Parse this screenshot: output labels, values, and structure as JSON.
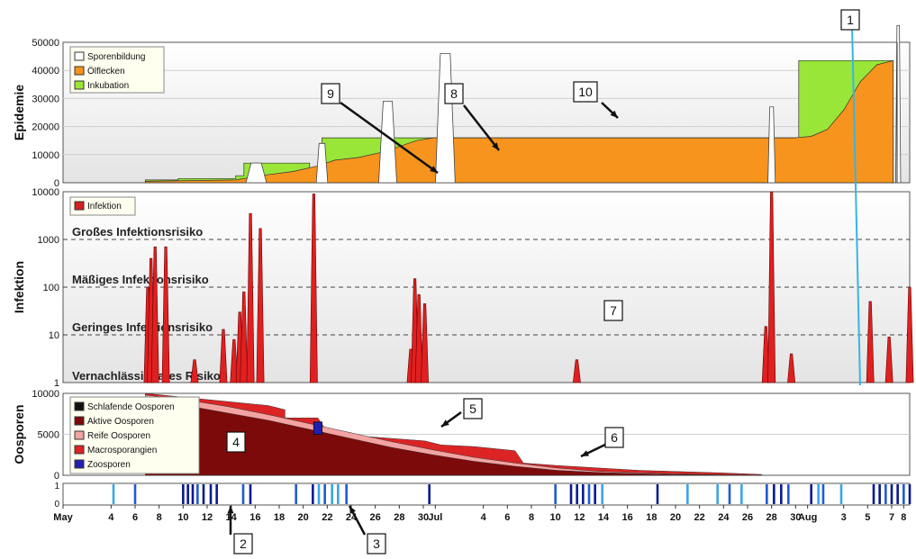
{
  "chart_data": [
    {
      "type": "area",
      "ylabel": "Epidemie",
      "ylim": [
        0,
        50000
      ],
      "yticks": [
        "0",
        "10000",
        "20000",
        "30000",
        "40000",
        "50000"
      ],
      "legend": {
        "placement": "top-left",
        "entries": [
          {
            "name": "Sporenbildung",
            "color": "#ffffff"
          },
          {
            "name": "Ölflecken",
            "color": "#f7941d"
          },
          {
            "name": "Inkubation",
            "color": "#99e639"
          }
        ]
      },
      "series": [
        {
          "name": "Inkubation",
          "color": "#99e639",
          "points": [
            [
              10,
              0
            ],
            [
              10,
              1000
            ],
            [
              14,
              1000
            ],
            [
              14,
              1500
            ],
            [
              21,
              1500
            ],
            [
              21,
              2500
            ],
            [
              22,
              2500
            ],
            [
              22,
              7000
            ],
            [
              30,
              7000
            ],
            [
              30,
              3000
            ],
            [
              31.5,
              3000
            ],
            [
              31.5,
              16000
            ],
            [
              38.5,
              16000
            ],
            [
              38.5,
              16000
            ],
            [
              89.5,
              16000
            ],
            [
              89.5,
              43500
            ],
            [
              101,
              43500
            ],
            [
              101,
              0
            ]
          ]
        },
        {
          "name": "Ölflecken",
          "color": "#f7941d",
          "points": [
            [
              10,
              0
            ],
            [
              10,
              500
            ],
            [
              21,
              1000
            ],
            [
              24,
              2500
            ],
            [
              28,
              4000
            ],
            [
              31,
              6000
            ],
            [
              33,
              8000
            ],
            [
              36,
              9000
            ],
            [
              39,
              11000
            ],
            [
              41,
              13000
            ],
            [
              43,
              15000
            ],
            [
              45,
              16000
            ],
            [
              89,
              16000
            ],
            [
              91,
              16500
            ],
            [
              93,
              19000
            ],
            [
              95,
              26000
            ],
            [
              97,
              36000
            ],
            [
              99,
              42000
            ],
            [
              101,
              43500
            ],
            [
              101,
              0
            ]
          ]
        },
        {
          "name": "Sporenbildung",
          "color": "#ffffff",
          "peaks": [
            {
              "x": 23.5,
              "width": 2.5,
              "value": 7000
            },
            {
              "x": 31.5,
              "width": 1.4,
              "value": 14000
            },
            {
              "x": 39.5,
              "width": 2.2,
              "value": 29000
            },
            {
              "x": 46.5,
              "width": 2.4,
              "value": 46000
            },
            {
              "x": 86.2,
              "width": 0.9,
              "value": 27000
            },
            {
              "x": 101.6,
              "width": 0.6,
              "value": 56000
            }
          ]
        }
      ]
    },
    {
      "type": "bar",
      "ylabel": "Infektion",
      "yscale": "log",
      "ylim": [
        1,
        10000
      ],
      "yticks": [
        "1",
        "10",
        "100",
        "1000",
        "10000"
      ],
      "legend": {
        "placement": "top-left",
        "entries": [
          {
            "name": "Infektion",
            "color": "#d42020"
          }
        ]
      },
      "thresholds": [
        {
          "label": "Großes Infektionsrisiko",
          "value": 1000
        },
        {
          "label": "Mäßiges Infektionsrisiko",
          "value": 100
        },
        {
          "label": "Geringes Infektionsrisiko",
          "value": 10
        },
        {
          "label": "Vernachlässigbares Risiko",
          "value": 1
        }
      ],
      "peaks": [
        {
          "x": 10.3,
          "value": 100
        },
        {
          "x": 10.7,
          "value": 400
        },
        {
          "x": 11.2,
          "value": 700
        },
        {
          "x": 12.5,
          "value": 700
        },
        {
          "x": 16.0,
          "value": 3
        },
        {
          "x": 19.5,
          "value": 13
        },
        {
          "x": 20.8,
          "value": 8
        },
        {
          "x": 21.5,
          "value": 30
        },
        {
          "x": 22.0,
          "value": 80
        },
        {
          "x": 22.8,
          "value": 3500
        },
        {
          "x": 24.0,
          "value": 1700
        },
        {
          "x": 30.5,
          "value": 9000
        },
        {
          "x": 42.3,
          "value": 5
        },
        {
          "x": 42.8,
          "value": 150
        },
        {
          "x": 43.3,
          "value": 70
        },
        {
          "x": 44.0,
          "value": 45
        },
        {
          "x": 62.5,
          "value": 3
        },
        {
          "x": 85.5,
          "value": 15
        },
        {
          "x": 86.2,
          "value": 10000
        },
        {
          "x": 88.6,
          "value": 4
        },
        {
          "x": 98.2,
          "value": 50
        },
        {
          "x": 100.5,
          "value": 9
        },
        {
          "x": 103.0,
          "value": 100
        }
      ]
    },
    {
      "type": "area",
      "ylabel": "Oosporen",
      "ylim": [
        0,
        10000
      ],
      "yticks": [
        "0",
        "5000",
        "10000"
      ],
      "legend": {
        "placement": "top-left",
        "entries": [
          {
            "name": "Schlafende Oosporen",
            "color": "#111111"
          },
          {
            "name": "Aktive Oosporen",
            "color": "#7d0a0a"
          },
          {
            "name": "Reife Oosporen",
            "color": "#f4a3a3"
          },
          {
            "name": "Macrosporangien",
            "color": "#dc2424"
          },
          {
            "name": "Zoosporen",
            "color": "#2020b0"
          }
        ]
      },
      "series": [
        {
          "name": "Aktive Oosporen",
          "points": [
            [
              10,
              9000
            ],
            [
              15,
              8500
            ],
            [
              20,
              7600
            ],
            [
              25,
              6700
            ],
            [
              30,
              5600
            ],
            [
              35,
              4500
            ],
            [
              40,
              3400
            ],
            [
              45,
              2500
            ],
            [
              50,
              1700
            ],
            [
              55,
              1100
            ],
            [
              60,
              600
            ],
            [
              65,
              350
            ],
            [
              70,
              200
            ],
            [
              75,
              90
            ],
            [
              80,
              40
            ],
            [
              85,
              15
            ]
          ]
        },
        {
          "name": "Reife Oosporen",
          "points": [
            [
              10,
              9800
            ],
            [
              15,
              9200
            ],
            [
              20,
              8400
            ],
            [
              25,
              7400
            ],
            [
              30,
              6300
            ],
            [
              35,
              5200
            ],
            [
              40,
              4100
            ],
            [
              45,
              3100
            ],
            [
              50,
              2200
            ],
            [
              55,
              1500
            ],
            [
              60,
              900
            ],
            [
              65,
              500
            ],
            [
              70,
              300
            ],
            [
              75,
              150
            ],
            [
              80,
              60
            ],
            [
              85,
              20
            ]
          ]
        },
        {
          "name": "Macrosporangien",
          "points": [
            [
              10,
              10000
            ],
            [
              15,
              9500
            ],
            [
              20,
              9000
            ],
            [
              25,
              8500
            ],
            [
              27,
              8000
            ],
            [
              27,
              7000
            ],
            [
              31,
              7000
            ],
            [
              32,
              5500
            ],
            [
              35,
              5200
            ],
            [
              36,
              4800
            ],
            [
              40,
              4500
            ],
            [
              44,
              4200
            ],
            [
              46,
              3700
            ],
            [
              50,
              3500
            ],
            [
              55,
              3000
            ],
            [
              56,
              1500
            ],
            [
              60,
              1200
            ],
            [
              70,
              600
            ],
            [
              80,
              300
            ],
            [
              85,
              100
            ]
          ]
        },
        {
          "name": "Zoosporen",
          "patches": [
            {
              "x0": 30.5,
              "x1": 31.5,
              "value": 6500
            }
          ]
        }
      ]
    },
    {
      "type": "heatmap",
      "ylim": [
        0,
        1
      ],
      "yticks": [
        "0",
        "1"
      ],
      "x_tick_labels": [
        "May",
        "4",
        "6",
        "8",
        "10",
        "12",
        "14",
        "16",
        "18",
        "20",
        "22",
        "24",
        "26",
        "28",
        "30",
        "Jul",
        "4",
        "6",
        "8",
        "10",
        "12",
        "14",
        "16",
        "18",
        "20",
        "22",
        "24",
        "26",
        "28",
        "30",
        "Aug",
        "3",
        "5",
        "7",
        "8"
      ],
      "x_tick_values": [
        0,
        4,
        6,
        8,
        10,
        12,
        14,
        16,
        18,
        20,
        22,
        24,
        26,
        28,
        30,
        31,
        35,
        37,
        39,
        41,
        43,
        45,
        47,
        49,
        51,
        53,
        55,
        57,
        59,
        61,
        62,
        65,
        67,
        69,
        70
      ],
      "events": [
        {
          "x": 4.2,
          "intensity": "light"
        },
        {
          "x": 6.0,
          "intensity": "medium"
        },
        {
          "x": 10.0,
          "intensity": "dark"
        },
        {
          "x": 10.4,
          "intensity": "dark"
        },
        {
          "x": 10.8,
          "intensity": "dark"
        },
        {
          "x": 11.2,
          "intensity": "medium"
        },
        {
          "x": 11.7,
          "intensity": "dark"
        },
        {
          "x": 12.3,
          "intensity": "dark"
        },
        {
          "x": 12.8,
          "intensity": "dark"
        },
        {
          "x": 15.0,
          "intensity": "medium"
        },
        {
          "x": 15.6,
          "intensity": "dark"
        },
        {
          "x": 19.4,
          "intensity": "medium"
        },
        {
          "x": 20.8,
          "intensity": "dark"
        },
        {
          "x": 21.3,
          "intensity": "light"
        },
        {
          "x": 21.8,
          "intensity": "medium"
        },
        {
          "x": 22.4,
          "intensity": "light"
        },
        {
          "x": 22.9,
          "intensity": "light"
        },
        {
          "x": 23.6,
          "intensity": "medium"
        },
        {
          "x": 30.5,
          "intensity": "dark"
        },
        {
          "x": 41.0,
          "intensity": "medium"
        },
        {
          "x": 42.3,
          "intensity": "dark"
        },
        {
          "x": 42.8,
          "intensity": "dark"
        },
        {
          "x": 43.3,
          "intensity": "dark"
        },
        {
          "x": 43.8,
          "intensity": "medium"
        },
        {
          "x": 44.3,
          "intensity": "dark"
        },
        {
          "x": 44.9,
          "intensity": "light"
        },
        {
          "x": 49.5,
          "intensity": "dark"
        },
        {
          "x": 52.0,
          "intensity": "light"
        },
        {
          "x": 54.5,
          "intensity": "light"
        },
        {
          "x": 55.5,
          "intensity": "medium"
        },
        {
          "x": 56.5,
          "intensity": "light"
        },
        {
          "x": 58.6,
          "intensity": "medium"
        },
        {
          "x": 59.2,
          "intensity": "dark"
        },
        {
          "x": 59.8,
          "intensity": "dark"
        },
        {
          "x": 60.4,
          "intensity": "medium"
        },
        {
          "x": 62.3,
          "intensity": "dark"
        },
        {
          "x": 62.9,
          "intensity": "light"
        },
        {
          "x": 63.3,
          "intensity": "medium"
        },
        {
          "x": 64.8,
          "intensity": "light"
        },
        {
          "x": 67.5,
          "intensity": "dark"
        },
        {
          "x": 68.0,
          "intensity": "dark"
        },
        {
          "x": 68.5,
          "intensity": "medium"
        },
        {
          "x": 69.0,
          "intensity": "dark"
        },
        {
          "x": 69.5,
          "intensity": "dark"
        },
        {
          "x": 70.0,
          "intensity": "medium"
        },
        {
          "x": 70.5,
          "intensity": "dark"
        }
      ]
    }
  ],
  "annotations": [
    "1",
    "2",
    "3",
    "4",
    "5",
    "6",
    "7",
    "8",
    "9",
    "10"
  ],
  "colors": {
    "light": "#3aa4ea",
    "medium": "#1f5ad2",
    "dark": "#0a1a90",
    "marker_line": "#36b5e5"
  }
}
